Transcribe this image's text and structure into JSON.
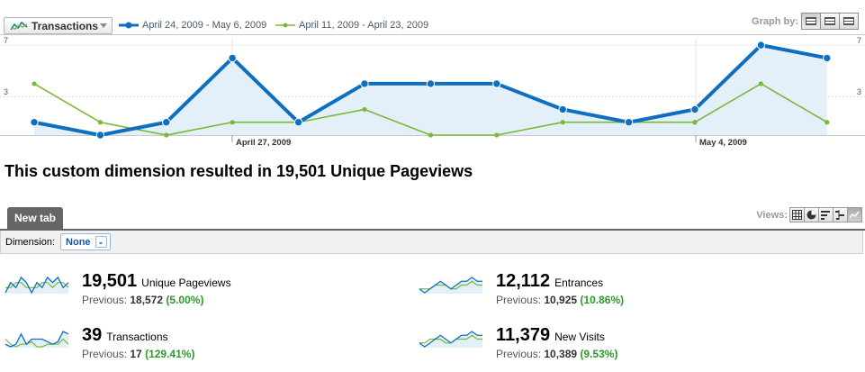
{
  "toolbar": {
    "metric_select_label": "Transactions",
    "graph_by_label": "Graph by:"
  },
  "legend": {
    "series1_label": "April 24, 2009 - May 6, 2009",
    "series2_label": "April 11, 2009 - April 23, 2009"
  },
  "colors": {
    "series1": "#0e6fc1",
    "series1_fill": "#e3f0f9",
    "series2": "#7bb838",
    "percent_change": "#2b9a2b",
    "tab_bg": "#666666"
  },
  "chart_data": {
    "type": "line",
    "y_left_ticks": [
      "7",
      "3"
    ],
    "y_right_ticks": [
      "7",
      "3"
    ],
    "ylim": [
      0,
      7.5
    ],
    "x_tick_labels": [
      {
        "index": 3,
        "label": "April 27, 2009"
      },
      {
        "index": 10,
        "label": "May 4, 2009"
      }
    ],
    "series": [
      {
        "name": "April 24, 2009 - May 6, 2009",
        "values": [
          1,
          0,
          1,
          6,
          1,
          4,
          4,
          4,
          2,
          1,
          2,
          7,
          6
        ],
        "area": true,
        "markers": true
      },
      {
        "name": "April 11, 2009 - April 23, 2009",
        "values": [
          4,
          1,
          0,
          1,
          1,
          2,
          0,
          0,
          1,
          1,
          1,
          4,
          1
        ],
        "area": false,
        "markers": true
      }
    ],
    "grid": true
  },
  "headline": "This custom dimension resulted in 19,501 Unique Pageviews",
  "tabs": [
    {
      "label": "New tab"
    }
  ],
  "views_label": "Views:",
  "dimension": {
    "label": "Dimension:",
    "value": "None"
  },
  "scorecards": [
    {
      "value": "19,501",
      "metric": "Unique Pageviews",
      "prev_label": "Previous:",
      "prev_value": "18,572",
      "change": "(5.00%)",
      "spark_a": [
        3,
        5,
        4,
        6,
        5,
        3,
        5,
        4,
        6,
        5,
        6,
        4,
        5
      ],
      "spark_b": [
        4,
        4,
        5,
        5,
        4,
        4,
        4,
        5,
        5,
        4,
        5,
        5,
        4
      ]
    },
    {
      "value": "12,112",
      "metric": "Entrances",
      "prev_label": "Previous:",
      "prev_value": "10,925",
      "change": "(10.86%)",
      "spark_a": [
        4,
        3,
        4,
        5,
        6,
        5,
        4,
        5,
        6,
        6,
        7,
        6,
        6
      ],
      "spark_b": [
        4,
        4,
        4,
        5,
        5,
        5,
        4,
        4,
        5,
        5,
        6,
        5,
        5
      ]
    },
    {
      "value": "39",
      "metric": "Transactions",
      "prev_label": "Previous:",
      "prev_value": "17",
      "change": "(129.41%)",
      "spark_a": [
        2,
        1,
        2,
        6,
        2,
        4,
        4,
        4,
        3,
        2,
        3,
        7,
        6
      ],
      "spark_b": [
        4,
        2,
        1,
        2,
        2,
        3,
        1,
        1,
        2,
        2,
        2,
        4,
        2
      ]
    },
    {
      "value": "11,379",
      "metric": "New Visits",
      "prev_label": "Previous:",
      "prev_value": "10,389",
      "change": "(9.53%)",
      "spark_a": [
        4,
        3,
        4,
        5,
        6,
        5,
        4,
        5,
        6,
        6,
        7,
        6,
        6
      ],
      "spark_b": [
        4,
        4,
        5,
        5,
        5,
        4,
        4,
        5,
        5,
        5,
        6,
        5,
        5
      ]
    }
  ]
}
